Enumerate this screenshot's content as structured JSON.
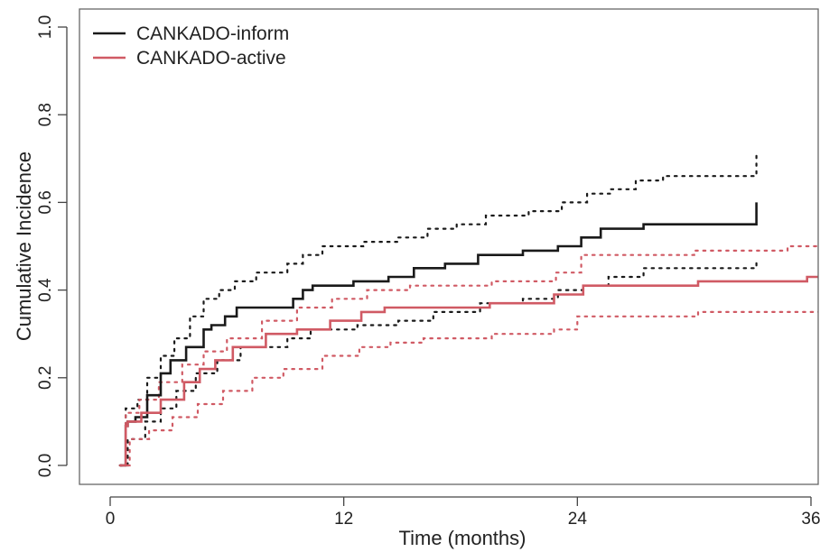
{
  "chart_data": {
    "type": "line",
    "title": "",
    "xlabel": "Time (months)",
    "ylabel": "Cumulative Incidence",
    "xlim": [
      0,
      36
    ],
    "ylim": [
      0,
      1.0
    ],
    "x_ticks": [
      "0",
      "12",
      "24",
      "36"
    ],
    "y_ticks": [
      "0.0",
      "0.2",
      "0.4",
      "0.6",
      "0.8",
      "1.0"
    ],
    "grid": false,
    "legend_position": "top-left",
    "series": [
      {
        "name": "CANKADO-inform",
        "color": "#1a1a1a",
        "x": [
          0.5,
          0.8,
          0.9,
          1.3,
          1.9,
          2.6,
          3.1,
          3.9,
          4.8,
          5.2,
          5.9,
          6.5,
          9.4,
          9.9,
          10.4,
          12.5,
          14.3,
          15.6,
          17.2,
          18.9,
          21.2,
          23.0,
          24.2,
          25.2,
          27.4,
          33.2,
          33.2
        ],
        "y": [
          0.0,
          0.09,
          0.1,
          0.11,
          0.16,
          0.21,
          0.24,
          0.27,
          0.31,
          0.32,
          0.34,
          0.36,
          0.38,
          0.4,
          0.41,
          0.42,
          0.43,
          0.45,
          0.46,
          0.48,
          0.49,
          0.5,
          0.52,
          0.54,
          0.55,
          0.56,
          0.6
        ]
      },
      {
        "name": "CANKADO-active",
        "color": "#d05a64",
        "x": [
          0.5,
          0.8,
          0.9,
          1.6,
          2.6,
          3.8,
          4.6,
          5.4,
          6.3,
          8.0,
          9.6,
          11.3,
          12.9,
          14.1,
          15.6,
          19.5,
          22.8,
          24.3,
          30.2,
          35.8,
          36.5
        ],
        "y": [
          0.0,
          0.09,
          0.1,
          0.12,
          0.15,
          0.19,
          0.22,
          0.24,
          0.27,
          0.3,
          0.31,
          0.33,
          0.35,
          0.36,
          0.36,
          0.37,
          0.39,
          0.41,
          0.42,
          0.43,
          0.44
        ]
      },
      {
        "role": "inform-upper-ci",
        "color": "#1a1a1a",
        "x": [
          0.5,
          0.8,
          1.4,
          1.9,
          2.6,
          3.3,
          4.1,
          4.8,
          5.6,
          6.4,
          7.5,
          9.1,
          9.9,
          10.9,
          13.0,
          14.8,
          16.3,
          17.8,
          19.3,
          21.5,
          23.2,
          24.5,
          25.7,
          27.0,
          28.4,
          33.2,
          33.2
        ],
        "y": [
          0.0,
          0.13,
          0.15,
          0.2,
          0.25,
          0.29,
          0.34,
          0.38,
          0.4,
          0.42,
          0.44,
          0.46,
          0.48,
          0.5,
          0.51,
          0.52,
          0.54,
          0.55,
          0.57,
          0.58,
          0.6,
          0.62,
          0.63,
          0.65,
          0.66,
          0.66,
          0.71
        ]
      },
      {
        "role": "inform-lower-ci",
        "color": "#1a1a1a",
        "x": [
          0.5,
          0.9,
          1.8,
          2.6,
          3.4,
          4.4,
          5.5,
          6.7,
          9.1,
          10.3,
          12.7,
          14.8,
          16.6,
          19.0,
          21.2,
          23.0,
          24.3,
          25.6,
          27.4,
          33.2,
          33.2
        ],
        "y": [
          0.0,
          0.06,
          0.1,
          0.13,
          0.17,
          0.21,
          0.24,
          0.27,
          0.29,
          0.31,
          0.32,
          0.33,
          0.35,
          0.37,
          0.38,
          0.4,
          0.41,
          0.43,
          0.45,
          0.45,
          0.47
        ]
      },
      {
        "role": "active-upper-ci",
        "color": "#d05a64",
        "x": [
          0.5,
          0.8,
          1.5,
          2.5,
          3.7,
          4.8,
          6.0,
          7.8,
          9.6,
          11.4,
          13.2,
          15.4,
          19.6,
          22.9,
          24.2,
          30.0,
          34.8,
          36.5
        ],
        "y": [
          0.0,
          0.12,
          0.15,
          0.19,
          0.23,
          0.26,
          0.29,
          0.33,
          0.36,
          0.38,
          0.4,
          0.41,
          0.42,
          0.44,
          0.48,
          0.49,
          0.5,
          0.52
        ]
      },
      {
        "role": "active-lower-ci",
        "color": "#d05a64",
        "x": [
          0.5,
          1.0,
          2.0,
          3.2,
          4.5,
          5.8,
          7.3,
          8.9,
          10.9,
          12.8,
          14.4,
          16.1,
          19.6,
          22.8,
          24.0,
          30.2,
          35.6,
          36.5
        ],
        "y": [
          0.0,
          0.06,
          0.08,
          0.11,
          0.14,
          0.17,
          0.2,
          0.22,
          0.25,
          0.27,
          0.28,
          0.29,
          0.3,
          0.31,
          0.34,
          0.35,
          0.35,
          0.36
        ]
      }
    ]
  }
}
